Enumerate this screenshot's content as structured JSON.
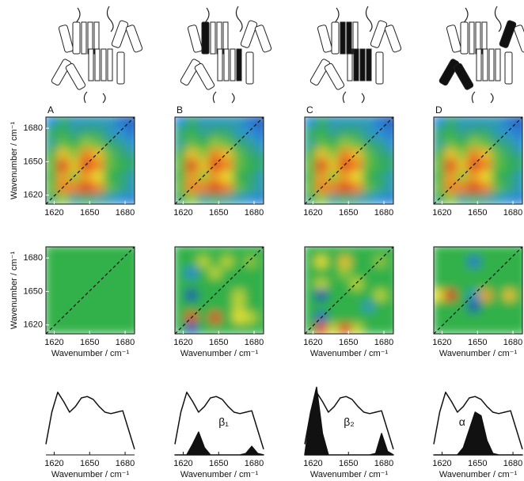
{
  "colormap": {
    "stops": [
      0,
      0.3,
      0.5,
      0.7,
      0.85,
      1
    ],
    "colors": [
      "#1c3fa8",
      "#2e90dc",
      "#33b04a",
      "#e8e030",
      "#f08020",
      "#d81e1e"
    ]
  },
  "chart_data": [
    {
      "type": "heatmap",
      "label": "A",
      "x": [
        1617,
        1627,
        1637,
        1647,
        1657,
        1667,
        1677,
        1687
      ],
      "y": [
        1617,
        1627,
        1637,
        1647,
        1657,
        1667,
        1677,
        1687
      ],
      "zlim": [
        0,
        1
      ],
      "values": [
        [
          0.45,
          0.6,
          0.4,
          0.45,
          0.4,
          0.35,
          0.3,
          0.25
        ],
        [
          0.55,
          0.85,
          0.85,
          0.95,
          0.85,
          0.55,
          0.45,
          0.35
        ],
        [
          0.5,
          0.8,
          0.6,
          0.8,
          0.7,
          0.5,
          0.45,
          0.35
        ],
        [
          0.55,
          0.95,
          0.75,
          0.95,
          0.85,
          0.55,
          0.5,
          0.45
        ],
        [
          0.5,
          0.75,
          0.6,
          0.85,
          0.75,
          0.55,
          0.45,
          0.4
        ],
        [
          0.4,
          0.55,
          0.5,
          0.6,
          0.55,
          0.45,
          0.4,
          0.3
        ],
        [
          0.45,
          0.5,
          0.4,
          0.45,
          0.45,
          0.35,
          0.3,
          0.2
        ],
        [
          0.3,
          0.45,
          0.35,
          0.35,
          0.35,
          0.35,
          0.2,
          0.1
        ]
      ],
      "xlim": [
        1613,
        1688
      ],
      "ylim": [
        1612,
        1690
      ],
      "xticks": [
        1620,
        1650,
        1680
      ],
      "yticks": [
        1620,
        1650,
        1680
      ],
      "ylabel": "Wavenumber / cm⁻¹"
    },
    {
      "type": "heatmap",
      "label": "B",
      "x": [
        1617,
        1627,
        1637,
        1647,
        1657,
        1667,
        1677,
        1687
      ],
      "y": [
        1617,
        1627,
        1637,
        1647,
        1657,
        1667,
        1677,
        1687
      ],
      "zlim": [
        0,
        1
      ],
      "values": [
        [
          0.45,
          0.6,
          0.4,
          0.45,
          0.4,
          0.35,
          0.3,
          0.25
        ],
        [
          0.55,
          0.85,
          0.85,
          0.95,
          0.85,
          0.55,
          0.45,
          0.35
        ],
        [
          0.5,
          0.8,
          0.6,
          0.8,
          0.7,
          0.5,
          0.45,
          0.35
        ],
        [
          0.55,
          0.95,
          0.75,
          0.95,
          0.85,
          0.55,
          0.5,
          0.45
        ],
        [
          0.5,
          0.75,
          0.6,
          0.85,
          0.75,
          0.55,
          0.45,
          0.4
        ],
        [
          0.4,
          0.55,
          0.5,
          0.6,
          0.55,
          0.45,
          0.4,
          0.3
        ],
        [
          0.45,
          0.5,
          0.4,
          0.45,
          0.45,
          0.35,
          0.3,
          0.2
        ],
        [
          0.3,
          0.45,
          0.35,
          0.35,
          0.35,
          0.35,
          0.2,
          0.1
        ]
      ],
      "xlim": [
        1613,
        1688
      ],
      "ylim": [
        1612,
        1690
      ],
      "xticks": [
        1620,
        1650,
        1680
      ]
    },
    {
      "type": "heatmap",
      "label": "C",
      "x": [
        1617,
        1627,
        1637,
        1647,
        1657,
        1667,
        1677,
        1687
      ],
      "y": [
        1617,
        1627,
        1637,
        1647,
        1657,
        1667,
        1677,
        1687
      ],
      "zlim": [
        0,
        1
      ],
      "values": [
        [
          0.45,
          0.6,
          0.4,
          0.45,
          0.4,
          0.35,
          0.3,
          0.25
        ],
        [
          0.55,
          0.85,
          0.85,
          0.95,
          0.85,
          0.55,
          0.45,
          0.35
        ],
        [
          0.5,
          0.8,
          0.6,
          0.8,
          0.7,
          0.5,
          0.45,
          0.35
        ],
        [
          0.55,
          0.95,
          0.75,
          0.95,
          0.85,
          0.55,
          0.5,
          0.45
        ],
        [
          0.5,
          0.75,
          0.6,
          0.85,
          0.75,
          0.55,
          0.45,
          0.4
        ],
        [
          0.4,
          0.55,
          0.5,
          0.6,
          0.55,
          0.45,
          0.4,
          0.3
        ],
        [
          0.45,
          0.5,
          0.4,
          0.45,
          0.45,
          0.35,
          0.3,
          0.2
        ],
        [
          0.3,
          0.45,
          0.35,
          0.35,
          0.35,
          0.35,
          0.2,
          0.1
        ]
      ],
      "xlim": [
        1613,
        1688
      ],
      "ylim": [
        1612,
        1690
      ],
      "xticks": [
        1620,
        1650,
        1680
      ]
    },
    {
      "type": "heatmap",
      "label": "D",
      "x": [
        1617,
        1627,
        1637,
        1647,
        1657,
        1667,
        1677,
        1687
      ],
      "y": [
        1617,
        1627,
        1637,
        1647,
        1657,
        1667,
        1677,
        1687
      ],
      "zlim": [
        0,
        1
      ],
      "values": [
        [
          0.45,
          0.6,
          0.4,
          0.45,
          0.4,
          0.35,
          0.3,
          0.25
        ],
        [
          0.55,
          0.85,
          0.85,
          0.95,
          0.85,
          0.55,
          0.45,
          0.35
        ],
        [
          0.5,
          0.8,
          0.6,
          0.8,
          0.7,
          0.5,
          0.45,
          0.35
        ],
        [
          0.55,
          0.95,
          0.75,
          0.95,
          0.85,
          0.55,
          0.5,
          0.45
        ],
        [
          0.5,
          0.75,
          0.6,
          0.85,
          0.75,
          0.55,
          0.45,
          0.4
        ],
        [
          0.4,
          0.55,
          0.5,
          0.6,
          0.55,
          0.45,
          0.4,
          0.3
        ],
        [
          0.45,
          0.5,
          0.4,
          0.45,
          0.45,
          0.35,
          0.3,
          0.2
        ],
        [
          0.3,
          0.45,
          0.35,
          0.35,
          0.35,
          0.35,
          0.2,
          0.1
        ]
      ],
      "xlim": [
        1613,
        1688
      ],
      "ylim": [
        1612,
        1690
      ],
      "xticks": [
        1620,
        1650,
        1680
      ]
    },
    {
      "type": "heatmap",
      "x": [
        1617,
        1627,
        1637,
        1647,
        1657,
        1667,
        1677,
        1687
      ],
      "y": [
        1617,
        1627,
        1637,
        1647,
        1657,
        1667,
        1677,
        1687
      ],
      "zlim": [
        -1,
        1
      ],
      "values": [
        [
          0,
          0,
          0,
          0,
          0,
          0,
          0,
          0
        ],
        [
          0,
          0,
          0,
          0,
          0,
          0,
          0,
          0
        ],
        [
          0,
          0,
          0,
          0,
          0,
          0,
          0,
          0
        ],
        [
          0,
          0,
          0,
          0,
          0,
          0,
          0,
          0
        ],
        [
          0,
          0,
          0,
          0,
          0,
          0,
          0,
          0
        ],
        [
          0,
          0,
          0,
          0,
          0,
          0,
          0,
          0
        ],
        [
          0,
          0,
          0,
          0,
          0,
          0,
          0,
          0
        ],
        [
          0,
          0,
          0,
          0,
          0,
          0,
          0,
          0
        ]
      ],
      "xlim": [
        1613,
        1688
      ],
      "ylim": [
        1612,
        1690
      ],
      "xticks": [
        1620,
        1650,
        1680
      ],
      "yticks": [
        1620,
        1650,
        1680
      ],
      "ylabel": "Wavenumber / cm⁻¹",
      "xlabel": "Wavenumber / cm⁻¹"
    },
    {
      "type": "heatmap",
      "x": [
        1617,
        1627,
        1637,
        1647,
        1657,
        1667,
        1677,
        1687
      ],
      "y": [
        1617,
        1627,
        1637,
        1647,
        1657,
        1667,
        1677,
        1687
      ],
      "zlim": [
        -1,
        1
      ],
      "values": [
        [
          0,
          -0.8,
          0,
          0,
          0,
          0,
          0,
          0
        ],
        [
          0,
          0.9,
          0,
          0.9,
          0,
          0.4,
          0.3,
          0
        ],
        [
          0,
          0,
          0,
          0,
          0,
          0.3,
          0,
          0
        ],
        [
          0,
          -0.9,
          0,
          0,
          0,
          0.3,
          0,
          0
        ],
        [
          0,
          0,
          0,
          0,
          0,
          0,
          0,
          0
        ],
        [
          0,
          -0.5,
          0,
          0.3,
          0,
          0,
          0,
          0
        ],
        [
          0,
          0,
          0.3,
          0,
          0.3,
          0,
          0.2,
          0
        ],
        [
          0,
          0,
          0,
          0,
          0,
          0,
          0,
          0
        ]
      ],
      "xlim": [
        1613,
        1688
      ],
      "ylim": [
        1612,
        1690
      ],
      "xticks": [
        1620,
        1650,
        1680
      ],
      "xlabel": "Wavenumber / cm⁻¹"
    },
    {
      "type": "heatmap",
      "x": [
        1617,
        1627,
        1637,
        1647,
        1657,
        1667,
        1677,
        1687
      ],
      "y": [
        1617,
        1627,
        1637,
        1647,
        1657,
        1667,
        1677,
        1687
      ],
      "zlim": [
        -1,
        1
      ],
      "values": [
        [
          0,
          0.9,
          0.3,
          0.9,
          0.3,
          0,
          0,
          0
        ],
        [
          0,
          -0.7,
          0,
          0,
          0,
          0,
          0,
          0
        ],
        [
          0,
          0,
          0,
          0,
          0,
          -0.3,
          0,
          0
        ],
        [
          0,
          -0.9,
          0,
          0,
          0,
          0,
          0.3,
          0
        ],
        [
          0,
          0.3,
          0,
          0,
          0.3,
          0,
          0,
          0
        ],
        [
          0,
          0,
          0,
          0.2,
          0,
          0,
          0,
          0
        ],
        [
          0,
          0.4,
          0,
          0.5,
          0,
          0,
          0.2,
          0
        ],
        [
          0,
          0,
          0,
          0,
          0,
          0,
          0,
          0
        ]
      ],
      "xlim": [
        1613,
        1688
      ],
      "ylim": [
        1612,
        1690
      ],
      "xticks": [
        1620,
        1650,
        1680
      ],
      "xlabel": "Wavenumber / cm⁻¹"
    },
    {
      "type": "heatmap",
      "x": [
        1617,
        1627,
        1637,
        1647,
        1657,
        1667,
        1677,
        1687
      ],
      "y": [
        1617,
        1627,
        1637,
        1647,
        1657,
        1667,
        1677,
        1687
      ],
      "zlim": [
        -1,
        1
      ],
      "values": [
        [
          0,
          0,
          0,
          0,
          0,
          0,
          0,
          0
        ],
        [
          0,
          0,
          0,
          0,
          0,
          0,
          0,
          0
        ],
        [
          0,
          0,
          0,
          -0.9,
          0,
          0,
          0,
          0
        ],
        [
          0.4,
          1,
          0,
          -0.3,
          0.6,
          0,
          0.5,
          0
        ],
        [
          0,
          0,
          0,
          0,
          0,
          0,
          0,
          0
        ],
        [
          0,
          0,
          0,
          0,
          0,
          0,
          0,
          0
        ],
        [
          0,
          0,
          0,
          -0.6,
          0,
          0,
          0,
          0
        ],
        [
          0,
          0,
          0,
          0,
          0,
          0,
          0,
          0
        ]
      ],
      "xlim": [
        1613,
        1688
      ],
      "ylim": [
        1612,
        1690
      ],
      "xticks": [
        1620,
        1650,
        1680
      ],
      "xlabel": "Wavenumber / cm⁻¹"
    },
    {
      "type": "line",
      "x": [
        1613,
        1618,
        1623,
        1628,
        1633,
        1638,
        1643,
        1648,
        1653,
        1658,
        1663,
        1668,
        1673,
        1678,
        1683,
        1688
      ],
      "xlim": [
        1613,
        1688
      ],
      "ylim": [
        0,
        1
      ],
      "xticks": [
        1620,
        1650,
        1680
      ],
      "xlabel": "Wavenumber / cm⁻¹",
      "series": [
        {
          "color": "#111",
          "values": [
            0.15,
            0.6,
            0.88,
            0.75,
            0.6,
            0.68,
            0.8,
            0.82,
            0.78,
            0.68,
            0.6,
            0.58,
            0.6,
            0.62,
            0.35,
            0.08
          ]
        }
      ]
    },
    {
      "type": "line",
      "x": [
        1613,
        1618,
        1623,
        1628,
        1633,
        1638,
        1643,
        1648,
        1653,
        1658,
        1663,
        1668,
        1673,
        1678,
        1683,
        1688
      ],
      "xlim": [
        1613,
        1688
      ],
      "ylim": [
        0,
        1
      ],
      "xticks": [
        1620,
        1650,
        1680
      ],
      "xlabel": "Wavenumber / cm⁻¹",
      "series": [
        {
          "color": "#111",
          "values": [
            0.15,
            0.6,
            0.88,
            0.75,
            0.6,
            0.68,
            0.8,
            0.82,
            0.78,
            0.68,
            0.6,
            0.58,
            0.6,
            0.62,
            0.35,
            0.08
          ]
        },
        {
          "name": "β₁",
          "color": "#111",
          "values": [
            0,
            0,
            0,
            0.15,
            0.32,
            0.1,
            0,
            0,
            0,
            0,
            0,
            0,
            0.02,
            0.12,
            0.02,
            0
          ]
        }
      ]
    },
    {
      "type": "line",
      "x": [
        1613,
        1618,
        1623,
        1628,
        1633,
        1638,
        1643,
        1648,
        1653,
        1658,
        1663,
        1668,
        1673,
        1678,
        1683,
        1688
      ],
      "xlim": [
        1613,
        1688
      ],
      "ylim": [
        0,
        1
      ],
      "xticks": [
        1620,
        1650,
        1680
      ],
      "xlabel": "Wavenumber / cm⁻¹",
      "series": [
        {
          "color": "#111",
          "values": [
            0.15,
            0.6,
            0.88,
            0.75,
            0.6,
            0.68,
            0.8,
            0.82,
            0.78,
            0.68,
            0.6,
            0.58,
            0.6,
            0.62,
            0.35,
            0.08
          ]
        },
        {
          "name": "β₂",
          "color": "#111",
          "values": [
            0,
            0.6,
            0.95,
            0.3,
            0,
            0,
            0,
            0,
            0,
            0,
            0,
            0,
            0.02,
            0.3,
            0.05,
            0
          ]
        }
      ]
    },
    {
      "type": "line",
      "x": [
        1613,
        1618,
        1623,
        1628,
        1633,
        1638,
        1643,
        1648,
        1653,
        1658,
        1663,
        1668,
        1673,
        1678,
        1683,
        1688
      ],
      "xlim": [
        1613,
        1688
      ],
      "ylim": [
        0,
        1
      ],
      "xticks": [
        1620,
        1650,
        1680
      ],
      "xlabel": "Wavenumber / cm⁻¹",
      "series": [
        {
          "color": "#111",
          "values": [
            0.15,
            0.6,
            0.88,
            0.75,
            0.6,
            0.68,
            0.8,
            0.82,
            0.78,
            0.68,
            0.6,
            0.58,
            0.6,
            0.62,
            0.35,
            0.08
          ]
        },
        {
          "name": "α",
          "color": "#111",
          "values": [
            0,
            0,
            0,
            0,
            0,
            0.1,
            0.35,
            0.6,
            0.55,
            0.2,
            0.02,
            0,
            0,
            0,
            0,
            0
          ]
        }
      ]
    }
  ]
}
